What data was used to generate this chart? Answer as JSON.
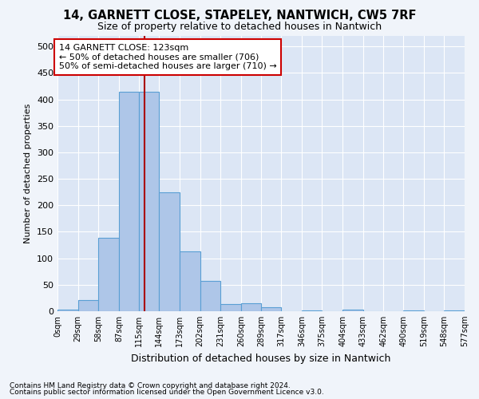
{
  "title": "14, GARNETT CLOSE, STAPELEY, NANTWICH, CW5 7RF",
  "subtitle": "Size of property relative to detached houses in Nantwich",
  "xlabel": "Distribution of detached houses by size in Nantwich",
  "ylabel": "Number of detached properties",
  "bar_values": [
    3,
    21,
    138,
    415,
    415,
    225,
    113,
    57,
    13,
    15,
    7,
    0,
    2,
    0,
    3,
    0,
    0,
    1,
    0,
    1
  ],
  "bin_edges": [
    0,
    29,
    58,
    87,
    115,
    144,
    173,
    202,
    231,
    260,
    289,
    317,
    346,
    375,
    404,
    433,
    462,
    490,
    519,
    548,
    577
  ],
  "tick_labels": [
    "0sqm",
    "29sqm",
    "58sqm",
    "87sqm",
    "115sqm",
    "144sqm",
    "173sqm",
    "202sqm",
    "231sqm",
    "260sqm",
    "289sqm",
    "317sqm",
    "346sqm",
    "375sqm",
    "404sqm",
    "433sqm",
    "462sqm",
    "490sqm",
    "519sqm",
    "548sqm",
    "577sqm"
  ],
  "bar_color": "#aec6e8",
  "bar_edge_color": "#5a9fd4",
  "vline_x": 123,
  "vline_color": "#aa0000",
  "ylim": [
    0,
    520
  ],
  "yticks": [
    0,
    50,
    100,
    150,
    200,
    250,
    300,
    350,
    400,
    450,
    500
  ],
  "annotation_line1": "14 GARNETT CLOSE: 123sqm",
  "annotation_line2": "← 50% of detached houses are smaller (706)",
  "annotation_line3": "50% of semi-detached houses are larger (710) →",
  "annotation_box_color": "#ffffff",
  "annotation_box_edge": "#cc0000",
  "footer1": "Contains HM Land Registry data © Crown copyright and database right 2024.",
  "footer2": "Contains public sector information licensed under the Open Government Licence v3.0.",
  "background_color": "#f0f4fa",
  "plot_bg_color": "#dce6f5"
}
